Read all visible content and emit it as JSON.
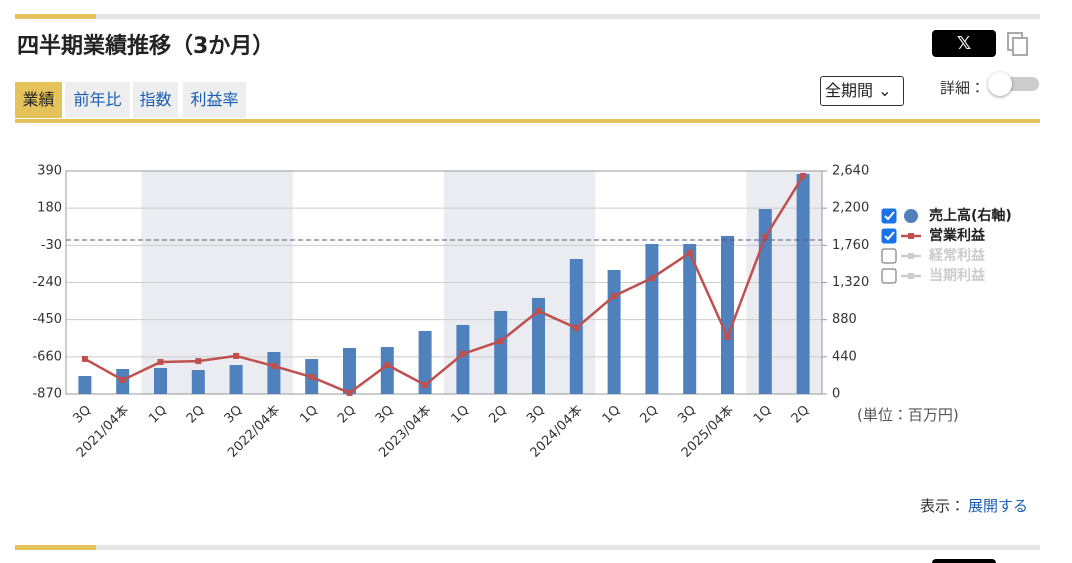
{
  "header": {
    "title": "四半期業績推移（3か月）"
  },
  "tabs": [
    "業績",
    "前年比",
    "指数",
    "利益率"
  ],
  "period_select": "全期間",
  "detail_label": "詳細：",
  "chart_data": {
    "type": "bar_line",
    "categories": [
      "3Q",
      "2021/04本",
      "1Q",
      "2Q",
      "3Q",
      "2022/04本",
      "1Q",
      "2Q",
      "3Q",
      "2023/04本",
      "1Q",
      "2Q",
      "3Q",
      "2024/04本",
      "1Q",
      "2Q",
      "3Q",
      "2025/04本",
      "1Q",
      "2Q"
    ],
    "series": [
      {
        "name": "売上高(右軸)",
        "type": "bar",
        "axis": "y2",
        "color": "#4f81bd",
        "checked": true,
        "values": [
          213,
          296,
          308,
          284,
          343,
          497,
          414,
          545,
          556,
          746,
          817,
          983,
          1137,
          1598,
          1468,
          1776,
          1776,
          1871,
          2190,
          2605
        ]
      },
      {
        "name": "営業利益",
        "type": "line",
        "axis": "y",
        "color": "#c0504d",
        "checked": true,
        "values": [
          -672,
          -791,
          -689,
          -684,
          -655,
          -712,
          -774,
          -864,
          -706,
          -819,
          -644,
          -571,
          -401,
          -497,
          -316,
          -215,
          -73,
          -548,
          17,
          362
        ]
      },
      {
        "name": "経常利益",
        "type": "line",
        "color": "#cccccc",
        "checked": false
      },
      {
        "name": "当期利益",
        "type": "line",
        "color": "#cccccc",
        "checked": false
      }
    ],
    "ylim": [
      -870,
      390
    ],
    "yticks": [
      -870,
      -660,
      -450,
      -240,
      -30,
      180,
      390
    ],
    "y2lim": [
      0,
      2640
    ],
    "y2ticks": [
      0,
      440,
      880,
      {
        "value": 1320,
        "label": "1,320"
      },
      {
        "value": 1760,
        "label": "1,760"
      },
      {
        "value": 2200,
        "label": "2,200"
      },
      {
        "value": 2640,
        "label": "2,640"
      }
    ],
    "grid": true
  },
  "unit_note": "(単位：百万円)",
  "footer": {
    "label": "表示：",
    "link": "展開する"
  }
}
